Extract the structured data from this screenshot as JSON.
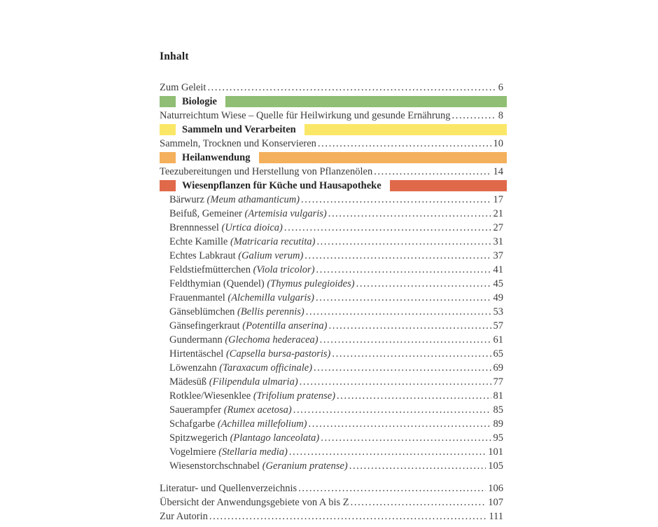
{
  "title": "Inhalt",
  "colors": {
    "green": "#8FBE74",
    "yellow": "#FAE768",
    "orange": "#F4B05C",
    "red": "#E0694A",
    "text": "#3B3B3B"
  },
  "toc": {
    "entries": [
      {
        "type": "entry",
        "label": "Zum Geleit",
        "latin": "",
        "page": "6",
        "indent": false
      },
      {
        "type": "section",
        "label": "Biologie",
        "color": "green"
      },
      {
        "type": "entry",
        "label": "Naturreichtum Wiese – Quelle für Heilwirkung und gesunde Ernährung",
        "latin": "",
        "page": "8",
        "indent": false
      },
      {
        "type": "section",
        "label": "Sammeln und Verarbeiten",
        "color": "yellow"
      },
      {
        "type": "entry",
        "label": "Sammeln, Trocknen und Konservieren",
        "latin": "",
        "page": "10",
        "indent": false
      },
      {
        "type": "section",
        "label": "Heilanwendung",
        "color": "orange"
      },
      {
        "type": "entry",
        "label": "Teezubereitungen und Herstellung von Pflanzenölen",
        "latin": "",
        "page": "14",
        "indent": false
      },
      {
        "type": "section",
        "label": "Wiesenpflanzen für Küche und Hausapotheke",
        "color": "red"
      },
      {
        "type": "entry",
        "label": "Bärwurz",
        "latin": "(Meum athamanticum)",
        "page": "17",
        "indent": true
      },
      {
        "type": "entry",
        "label": "Beifuß, Gemeiner",
        "latin": "(Artemisia vulgaris)",
        "page": "21",
        "indent": true
      },
      {
        "type": "entry",
        "label": "Brennnessel",
        "latin": "(Urtica dioica)",
        "page": "27",
        "indent": true
      },
      {
        "type": "entry",
        "label": "Echte Kamille",
        "latin": "(Matricaria recutita)",
        "page": "31",
        "indent": true
      },
      {
        "type": "entry",
        "label": "Echtes Labkraut",
        "latin": "(Galium verum)",
        "page": "37",
        "indent": true
      },
      {
        "type": "entry",
        "label": "Feldstiefmütterchen",
        "latin": "(Viola tricolor)",
        "page": "41",
        "indent": true
      },
      {
        "type": "entry",
        "label": "Feldthymian (Quendel)",
        "latin": "(Thymus pulegioides)",
        "page": "45",
        "indent": true
      },
      {
        "type": "entry",
        "label": "Frauenmantel",
        "latin": "(Alchemilla vulgaris)",
        "page": "49",
        "indent": true
      },
      {
        "type": "entry",
        "label": "Gänseblümchen",
        "latin": "(Bellis perennis)",
        "page": "53",
        "indent": true
      },
      {
        "type": "entry",
        "label": "Gänsefingerkraut",
        "latin": "(Potentilla anserina)",
        "page": "57",
        "indent": true
      },
      {
        "type": "entry",
        "label": "Gundermann",
        "latin": "(Glechoma hederacea)",
        "page": "61",
        "indent": true
      },
      {
        "type": "entry",
        "label": "Hirtentäschel",
        "latin": "(Capsella bursa-pastoris)",
        "page": "65",
        "indent": true
      },
      {
        "type": "entry",
        "label": "Löwenzahn",
        "latin": "(Taraxacum officinale)",
        "page": "69",
        "indent": true
      },
      {
        "type": "entry",
        "label": "Mädesüß",
        "latin": "(Filipendula ulmaria)",
        "page": "77",
        "indent": true
      },
      {
        "type": "entry",
        "label": "Rotklee/Wiesenklee",
        "latin": "(Trifolium pratense)",
        "page": "81",
        "indent": true
      },
      {
        "type": "entry",
        "label": "Sauerampfer",
        "latin": "(Rumex acetosa)",
        "page": "85",
        "indent": true
      },
      {
        "type": "entry",
        "label": "Schafgarbe",
        "latin": "(Achillea millefolium)",
        "page": "89",
        "indent": true
      },
      {
        "type": "entry",
        "label": "Spitzwegerich",
        "latin": "(Plantago lanceolata)",
        "page": "95",
        "indent": true
      },
      {
        "type": "entry",
        "label": "Vogelmiere",
        "latin": "(Stellaria media)",
        "page": "101",
        "indent": true
      },
      {
        "type": "entry",
        "label": "Wiesenstorchschnabel",
        "latin": "(Geranium pratense)",
        "page": "105",
        "indent": true
      },
      {
        "type": "spacer"
      },
      {
        "type": "entry",
        "label": "Literatur- und Quellenverzeichnis",
        "latin": "",
        "page": "106",
        "indent": false
      },
      {
        "type": "entry",
        "label": "Übersicht der Anwendungsgebiete von A bis Z",
        "latin": "",
        "page": "107",
        "indent": false
      },
      {
        "type": "entry",
        "label": "Zur Autorin",
        "latin": "",
        "page": "111",
        "indent": false
      }
    ]
  }
}
